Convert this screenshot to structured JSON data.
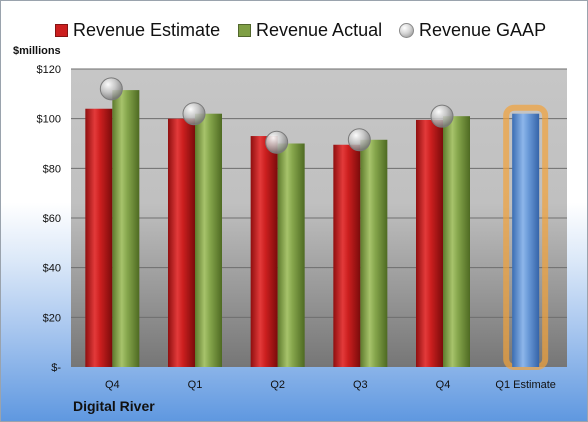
{
  "legend": {
    "estimate": "Revenue Estimate",
    "actual": "Revenue Actual",
    "gaap": "Revenue GAAP"
  },
  "unit_label": "$millions",
  "company": "Digital River",
  "colors": {
    "estimate": "#cc1f1f",
    "actual": "#7f9f45",
    "gaap": "#b5b5b5",
    "forecast": "#5b8ed0",
    "forecast_glow": "#f2a33a"
  },
  "chart_data": {
    "type": "bar",
    "categories": [
      "Q4",
      "Q1",
      "Q2",
      "Q3",
      "Q4",
      "Q1 Estimate"
    ],
    "series": [
      {
        "name": "Revenue Estimate",
        "values": [
          104,
          100,
          93,
          89.5,
          99.5,
          null
        ]
      },
      {
        "name": "Revenue Actual",
        "values": [
          111.5,
          102,
          90,
          91.5,
          101,
          102
        ]
      },
      {
        "name": "Revenue GAAP",
        "values": [
          112,
          102,
          90.5,
          91.5,
          101,
          null
        ]
      }
    ],
    "yticks": [
      "$-",
      "$20",
      "$40",
      "$60",
      "$80",
      "$100",
      "$120"
    ],
    "ylim": [
      0,
      120
    ],
    "grid": true,
    "legend_position": "top"
  }
}
